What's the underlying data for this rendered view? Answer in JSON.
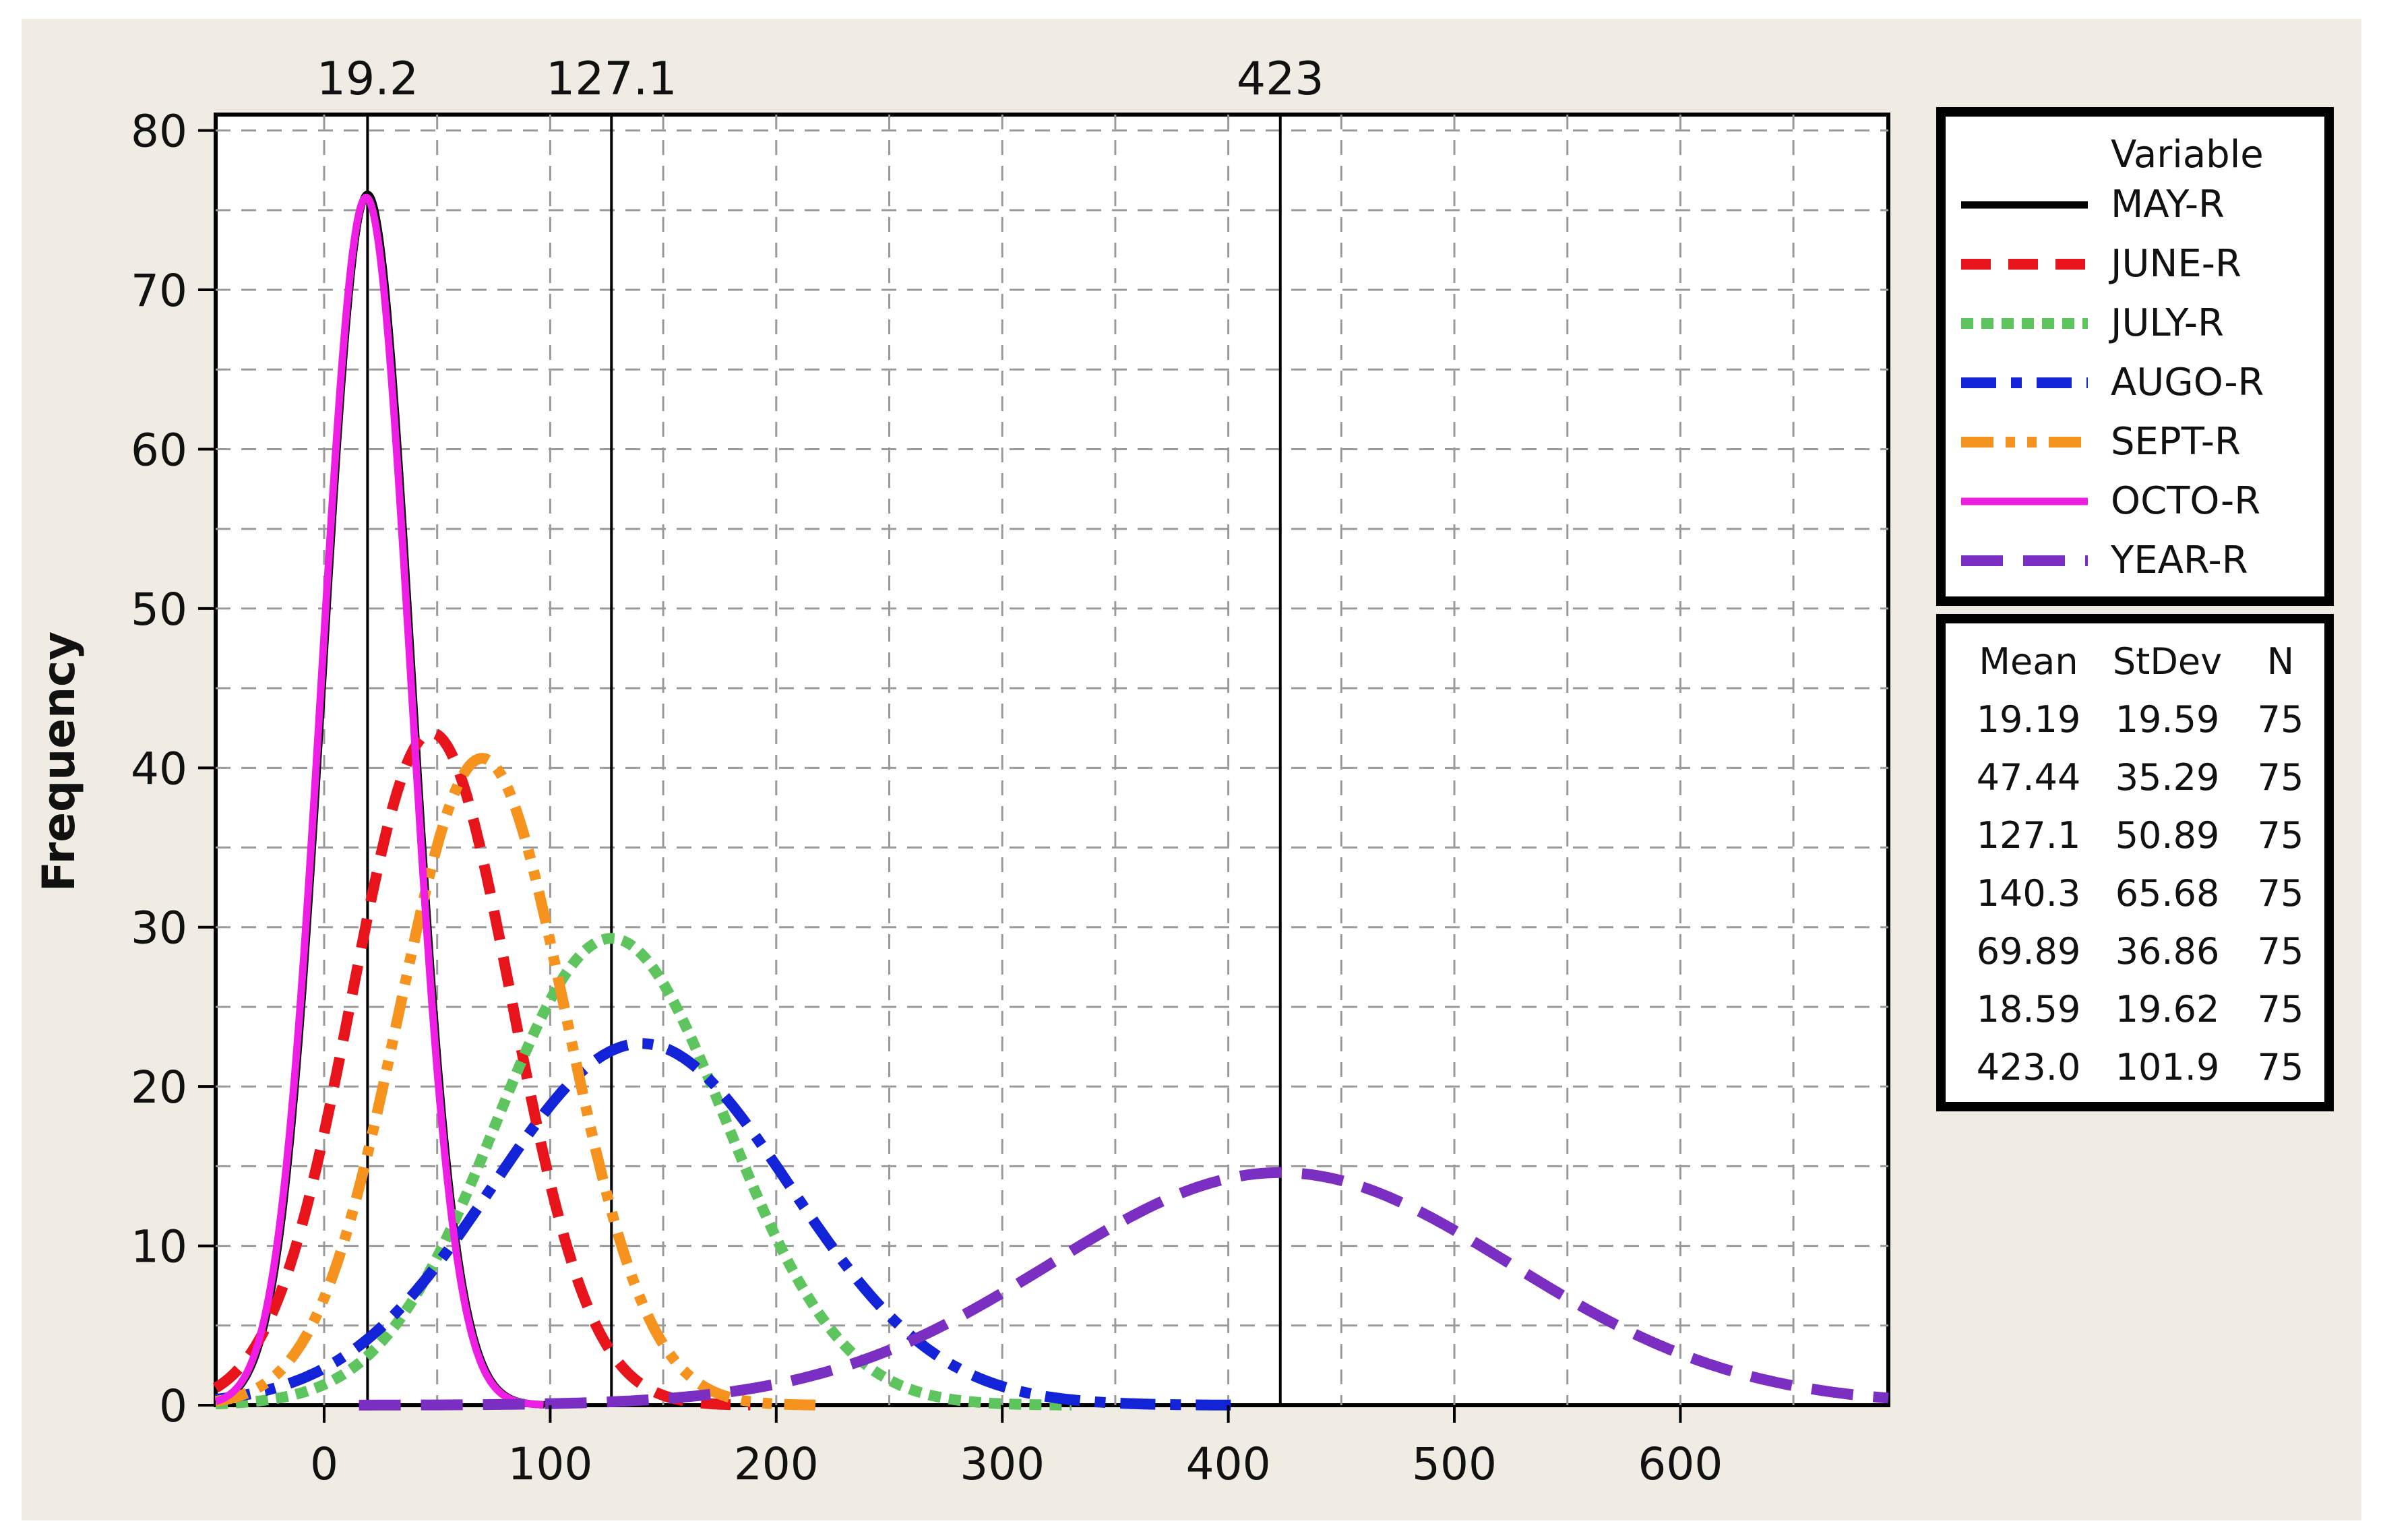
{
  "chart_data": {
    "type": "line",
    "title": "",
    "xlabel": "",
    "ylabel": "Frequency",
    "xlim": [
      -48,
      692
    ],
    "ylim": [
      0,
      81
    ],
    "x_ticks": [
      0,
      100,
      200,
      300,
      400,
      500,
      600
    ],
    "x_tick_labels": [
      "0",
      "100",
      "200",
      "300",
      "400",
      "500",
      "600"
    ],
    "y_ticks": [
      0,
      10,
      20,
      30,
      40,
      50,
      60,
      70,
      80
    ],
    "y_tick_labels": [
      "0",
      "10",
      "20",
      "30",
      "40",
      "50",
      "60",
      "70",
      "80"
    ],
    "grid": true,
    "legend_position": "right",
    "legend_title": "Variable",
    "reference_lines": [
      {
        "x": 19.2,
        "label": "19.2"
      },
      {
        "x": 127.1,
        "label": "127.1"
      },
      {
        "x": 423,
        "label": "423"
      }
    ],
    "series": [
      {
        "name": "MAY-R",
        "mean": 19.19,
        "stdev": 19.59,
        "n": 75,
        "color": "#000000",
        "style": "solid"
      },
      {
        "name": "JUNE-R",
        "mean": 47.44,
        "stdev": 35.29,
        "n": 75,
        "color": "#e8141b",
        "style": "dash"
      },
      {
        "name": "JULY-R",
        "mean": 127.1,
        "stdev": 50.89,
        "n": 75,
        "color": "#5ec45e",
        "style": "dot"
      },
      {
        "name": "AUGO-R",
        "mean": 140.3,
        "stdev": 65.68,
        "n": 75,
        "color": "#1223d8",
        "style": "dashdot"
      },
      {
        "name": "SEPT-R",
        "mean": 69.89,
        "stdev": 36.86,
        "n": 75,
        "color": "#f5931e",
        "style": "dashdotdot"
      },
      {
        "name": "OCTO-R",
        "mean": 18.59,
        "stdev": 19.62,
        "n": 75,
        "color": "#ee1ee4",
        "style": "solid"
      },
      {
        "name": "YEAR-R",
        "mean": 423.0,
        "stdev": 101.9,
        "n": 75,
        "color": "#7b2fc2",
        "style": "longdash"
      }
    ],
    "stats_headers": [
      "Mean",
      "StDev",
      "N"
    ],
    "stats_rows": [
      [
        "19.19",
        "19.59",
        "75"
      ],
      [
        "47.44",
        "35.29",
        "75"
      ],
      [
        "127.1",
        "50.89",
        "75"
      ],
      [
        "140.3",
        "65.68",
        "75"
      ],
      [
        "69.89",
        "36.86",
        "75"
      ],
      [
        "18.59",
        "19.62",
        "75"
      ],
      [
        "423.0",
        "101.9",
        "75"
      ]
    ]
  }
}
